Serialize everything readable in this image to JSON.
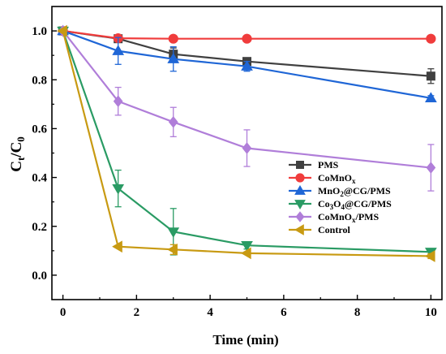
{
  "chart_data": {
    "type": "line",
    "xlabel": "Time (min)",
    "ylabel": "Ct/C0",
    "xlim": [
      -0.3,
      10.3
    ],
    "ylim": [
      -0.1,
      1.1
    ],
    "x_ticks": [
      0,
      2,
      4,
      6,
      8,
      10
    ],
    "y_ticks": [
      0.0,
      0.2,
      0.4,
      0.6,
      0.8,
      1.0
    ],
    "x_tick_labels": [
      "0",
      "2",
      "4",
      "6",
      "8",
      "10"
    ],
    "y_tick_labels": [
      "0.0",
      "0.2",
      "0.4",
      "0.6",
      "0.8",
      "1.0"
    ],
    "legend_position": "right-center",
    "grid": false,
    "series": [
      {
        "name": "PMS",
        "color": "#404040",
        "marker": "square",
        "x": [
          0,
          1.5,
          3,
          5,
          10
        ],
        "y": [
          1.0,
          0.968,
          0.905,
          0.875,
          0.815
        ],
        "err": [
          0,
          0.01,
          0.025,
          0.015,
          0.03
        ]
      },
      {
        "name": "CoMnOx",
        "color": "#f03c3c",
        "marker": "circle",
        "x": [
          0,
          1.5,
          3,
          5,
          10
        ],
        "y": [
          1.0,
          0.97,
          0.968,
          0.968,
          0.968
        ],
        "err": [
          0,
          0.005,
          0.005,
          0.005,
          0.005
        ]
      },
      {
        "name": "MnO2@CG/PMS",
        "color": "#1f66d6",
        "marker": "triangle-up",
        "x": [
          0,
          1.5,
          3,
          5,
          10
        ],
        "y": [
          1.0,
          0.918,
          0.885,
          0.855,
          0.725
        ],
        "err": [
          0,
          0.055,
          0.05,
          0.02,
          0.01
        ]
      },
      {
        "name": "Co3O4@CG/PMS",
        "color": "#2a9b64",
        "marker": "triangle-down",
        "x": [
          0,
          1.5,
          3,
          5,
          10
        ],
        "y": [
          1.0,
          0.355,
          0.178,
          0.122,
          0.095
        ],
        "err": [
          0,
          0.075,
          0.095,
          0.015,
          0.01
        ]
      },
      {
        "name": "CoMnOx/PMS",
        "color": "#b07ed9",
        "marker": "diamond",
        "x": [
          0,
          1.5,
          3,
          5,
          10
        ],
        "y": [
          1.0,
          0.712,
          0.627,
          0.52,
          0.44
        ],
        "err": [
          0,
          0.057,
          0.06,
          0.075,
          0.095
        ]
      },
      {
        "name": "Control",
        "color": "#c89a12",
        "marker": "triangle-left",
        "x": [
          0,
          1.5,
          3,
          5,
          10
        ],
        "y": [
          1.0,
          0.117,
          0.105,
          0.09,
          0.078
        ],
        "err": [
          0,
          0.005,
          0.02,
          0.005,
          0.01
        ]
      }
    ]
  }
}
